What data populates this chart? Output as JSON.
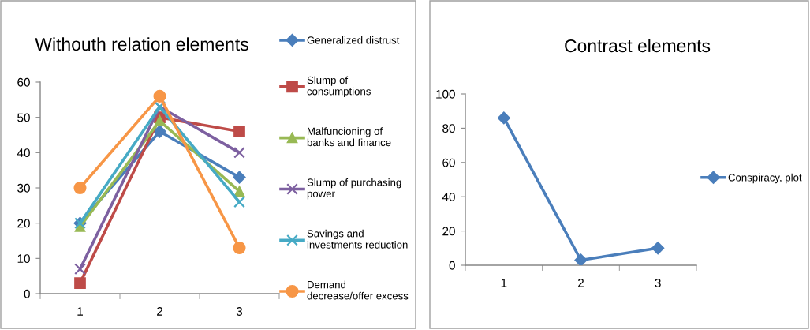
{
  "chart_data": [
    {
      "type": "line",
      "title": "Withouth relation elements",
      "x": [
        1,
        2,
        3
      ],
      "series": [
        {
          "name": "Generalized distrust",
          "color": "#4a7ebb",
          "marker": "diamond",
          "values": [
            20,
            46,
            33
          ]
        },
        {
          "name": "Slump of consumptions",
          "color": "#be4b48",
          "marker": "square",
          "values": [
            3,
            50,
            46
          ]
        },
        {
          "name": "Malfuncioning of banks and finance",
          "color": "#98b954",
          "marker": "triangle",
          "values": [
            19,
            49,
            29
          ]
        },
        {
          "name": "Slump of purchasing power",
          "color": "#7d60a0",
          "marker": "cross",
          "values": [
            7,
            53,
            40
          ]
        },
        {
          "name": "Savings and investments reduction",
          "color": "#46aac5",
          "marker": "cross",
          "values": [
            20,
            53,
            26
          ]
        },
        {
          "name": "Demand decrease/offer excess",
          "color": "#f79646",
          "marker": "circle",
          "values": [
            30,
            56,
            13
          ]
        }
      ],
      "xlim": [
        0.5,
        3.5
      ],
      "xticks": [
        {
          "value": 0.5,
          "label": null
        },
        1,
        {
          "value": 1.5,
          "label": null
        },
        2,
        {
          "value": 2.5,
          "label": null
        },
        3,
        {
          "value": 3.5,
          "label": null
        }
      ],
      "ylim": [
        0,
        60
      ],
      "yticks": [
        0,
        10,
        20,
        30,
        40,
        50,
        60
      ],
      "legend": "right"
    },
    {
      "type": "line",
      "title": "Contrast elements",
      "x": [
        1,
        2,
        3
      ],
      "series": [
        {
          "name": "Conspiracy, plot",
          "color": "#4a7ebb",
          "marker": "diamond",
          "values": [
            86,
            3,
            10
          ]
        }
      ],
      "xlim": [
        0.5,
        3.5
      ],
      "xticks": [
        {
          "value": 0.5,
          "label": null
        },
        1,
        {
          "value": 1.5,
          "label": null
        },
        2,
        {
          "value": 2.5,
          "label": null
        },
        3,
        {
          "value": 3.5,
          "label": null
        }
      ],
      "ylim": [
        0,
        100
      ],
      "yticks": [
        0,
        20,
        40,
        60,
        80,
        100
      ],
      "legend": "right"
    }
  ]
}
